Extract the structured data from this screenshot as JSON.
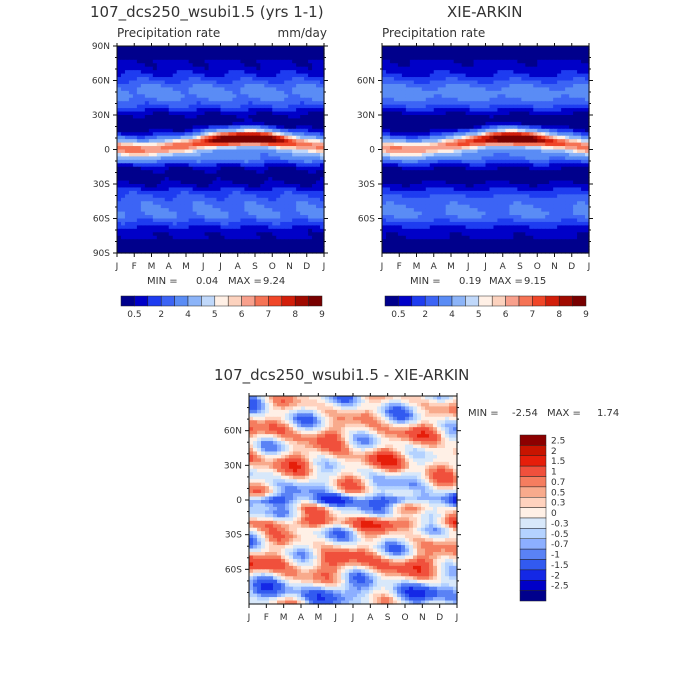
{
  "palette": {
    "abs": [
      "#00008c",
      "#0000c8",
      "#1e3cf0",
      "#3c64f5",
      "#5a8cf5",
      "#8cb4f8",
      "#c0d8fa",
      "#fff0e6",
      "#fcd2be",
      "#f8a08c",
      "#f57355",
      "#f04628",
      "#d21e0a",
      "#a00a00",
      "#780000"
    ],
    "diff": [
      "#00008c",
      "#0000c8",
      "#1428e6",
      "#325af0",
      "#5a82f5",
      "#8cafff",
      "#b4d2ff",
      "#d8e8fa",
      "#fff0e6",
      "#ffd2be",
      "#f8aa8c",
      "#f57d5f",
      "#f0503c",
      "#e61e0a",
      "#c81400",
      "#8c0000"
    ]
  },
  "chart_data": [
    {
      "type": "heatmap",
      "title": "107_dcs250_wsubi1.5 (yrs 1-1)",
      "subtitle": "Precipitation rate",
      "units": "mm/day",
      "x_ticks": [
        "J",
        "F",
        "M",
        "A",
        "M",
        "J",
        "J",
        "A",
        "S",
        "O",
        "N",
        "D",
        "J"
      ],
      "y_ticks": [
        "90N",
        "60N",
        "30N",
        "0",
        "30S",
        "60S",
        "90S"
      ],
      "ylim": [
        -90,
        90
      ],
      "min_label": "MIN =",
      "min": "0.04",
      "max_label": "MAX =",
      "max": "9.24",
      "colorbar_levels": [
        0.5,
        1,
        1.5,
        2,
        3,
        4,
        4.5,
        5,
        5.5,
        6,
        6.5,
        7,
        7.5,
        8,
        9
      ],
      "colorbar_labels": [
        "0.5",
        "2",
        "4",
        "5",
        "6",
        "7",
        "8",
        "9"
      ],
      "itcz_peak_month": 7.4,
      "itcz_peak_lat": 8,
      "itcz_peak_value": 9.24
    },
    {
      "type": "heatmap",
      "title": "XIE-ARKIN",
      "subtitle": "Precipitation rate",
      "x_ticks": [
        "J",
        "F",
        "M",
        "A",
        "M",
        "J",
        "J",
        "A",
        "S",
        "O",
        "N",
        "D",
        "J"
      ],
      "y_ticks": [
        "60N",
        "30N",
        "0",
        "30S",
        "60S"
      ],
      "ylim": [
        -90,
        90
      ],
      "min_label": "MIN =",
      "min": "0.19",
      "max_label": "MAX =",
      "max": "9.15",
      "colorbar_levels": [
        0.5,
        1,
        1.5,
        2,
        3,
        4,
        4.5,
        5,
        5.5,
        6,
        6.5,
        7,
        7.5,
        8,
        9
      ],
      "colorbar_labels": [
        "0.5",
        "2",
        "4",
        "5",
        "6",
        "7",
        "8",
        "9"
      ],
      "itcz_peak_month": 7.8,
      "itcz_peak_lat": 9,
      "itcz_peak_value": 9.15
    },
    {
      "type": "heatmap",
      "title": "107_dcs250_wsubi1.5 - XIE-ARKIN",
      "x_ticks": [
        "J",
        "F",
        "M",
        "A",
        "M",
        "J",
        "J",
        "A",
        "S",
        "O",
        "N",
        "D",
        "J"
      ],
      "y_ticks": [
        "60N",
        "30N",
        "0",
        "30S",
        "60S"
      ],
      "ylim": [
        -90,
        90
      ],
      "min_label": "MIN =",
      "min": "-2.54",
      "max_label": "MAX =",
      "max": "1.74",
      "colorbar_labels": [
        "2.5",
        "2",
        "1.5",
        "1",
        "0.7",
        "0.5",
        "0.3",
        "0",
        "-0.3",
        "-0.5",
        "-0.7",
        "-1",
        "-1.5",
        "-2",
        "-2.5"
      ],
      "colorbar_levels": [
        -2.5,
        -2,
        -1.5,
        -1,
        -0.7,
        -0.5,
        -0.3,
        0,
        0.3,
        0.5,
        0.7,
        1,
        1.5,
        2,
        2.5
      ]
    }
  ]
}
